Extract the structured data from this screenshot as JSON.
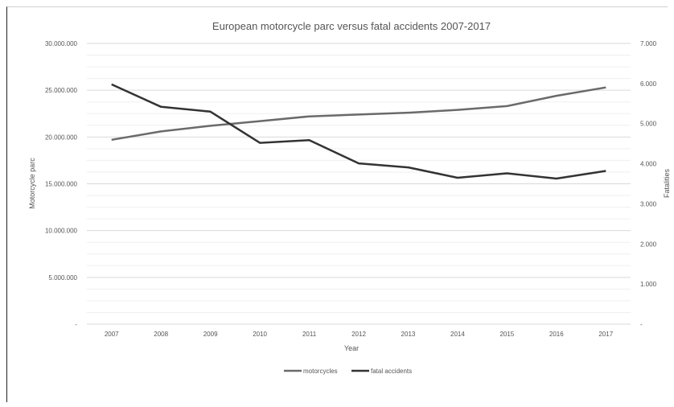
{
  "chart_data": {
    "type": "line",
    "title": "European motorcycle parc versus fatal accidents 2007-2017",
    "xlabel": "Year",
    "ylabel": "Motorcycle parc",
    "y2label": "Fatalities",
    "categories": [
      "2007",
      "2008",
      "2009",
      "2010",
      "2011",
      "2012",
      "2013",
      "2014",
      "2015",
      "2016",
      "2017"
    ],
    "ylim": [
      0,
      30000000
    ],
    "y2lim": [
      0,
      7000
    ],
    "y_ticks": [
      "-",
      "5.000.000",
      "10.000.000",
      "15.000.000",
      "20.000.000",
      "25.000.000",
      "30.000.000"
    ],
    "y2_ticks": [
      "-",
      "1.000",
      "2.000",
      "3.000",
      "4.000",
      "5.000",
      "6.000",
      "7.000"
    ],
    "series": [
      {
        "name": "motorcycles",
        "axis": "left",
        "color": "#6a6a6a",
        "values": [
          19700000,
          20600000,
          21200000,
          21700000,
          22200000,
          22400000,
          22600000,
          22900000,
          23300000,
          24400000,
          25300000
        ]
      },
      {
        "name": "fatal accidents",
        "axis": "right",
        "color": "#333333",
        "values": [
          5980,
          5420,
          5300,
          4520,
          4590,
          4010,
          3910,
          3650,
          3760,
          3630,
          3820
        ]
      }
    ],
    "grid": true,
    "legend_position": "bottom"
  }
}
